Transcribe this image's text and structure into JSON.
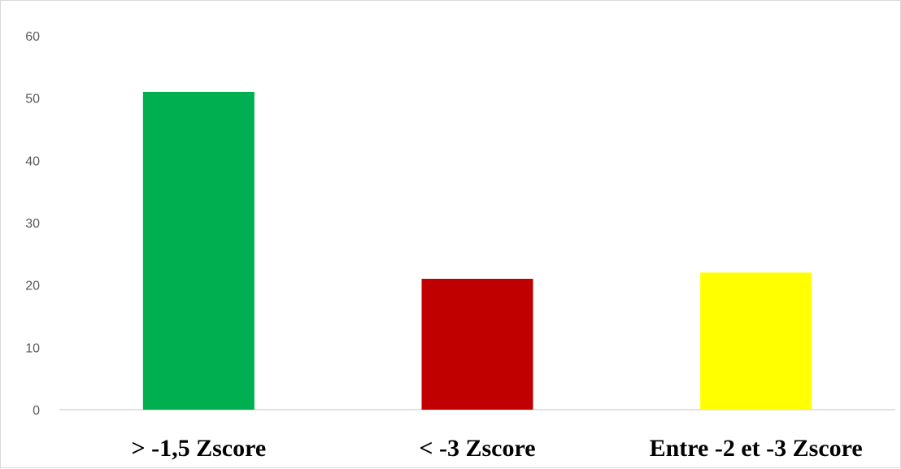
{
  "chart_data": {
    "type": "bar",
    "categories": [
      "> -1,5 Zscore",
      "< -3 Zscore",
      "Entre -2 et -3 Zscore"
    ],
    "values": [
      51,
      21,
      22
    ],
    "colors": [
      "#00b050",
      "#c00000",
      "#ffff00"
    ],
    "ylim": [
      0,
      60
    ],
    "yticks": [
      "0",
      "10",
      "20",
      "30",
      "40",
      "50",
      "60"
    ],
    "grid": false,
    "legend": "none",
    "title": "",
    "xlabel": "",
    "ylabel": ""
  }
}
